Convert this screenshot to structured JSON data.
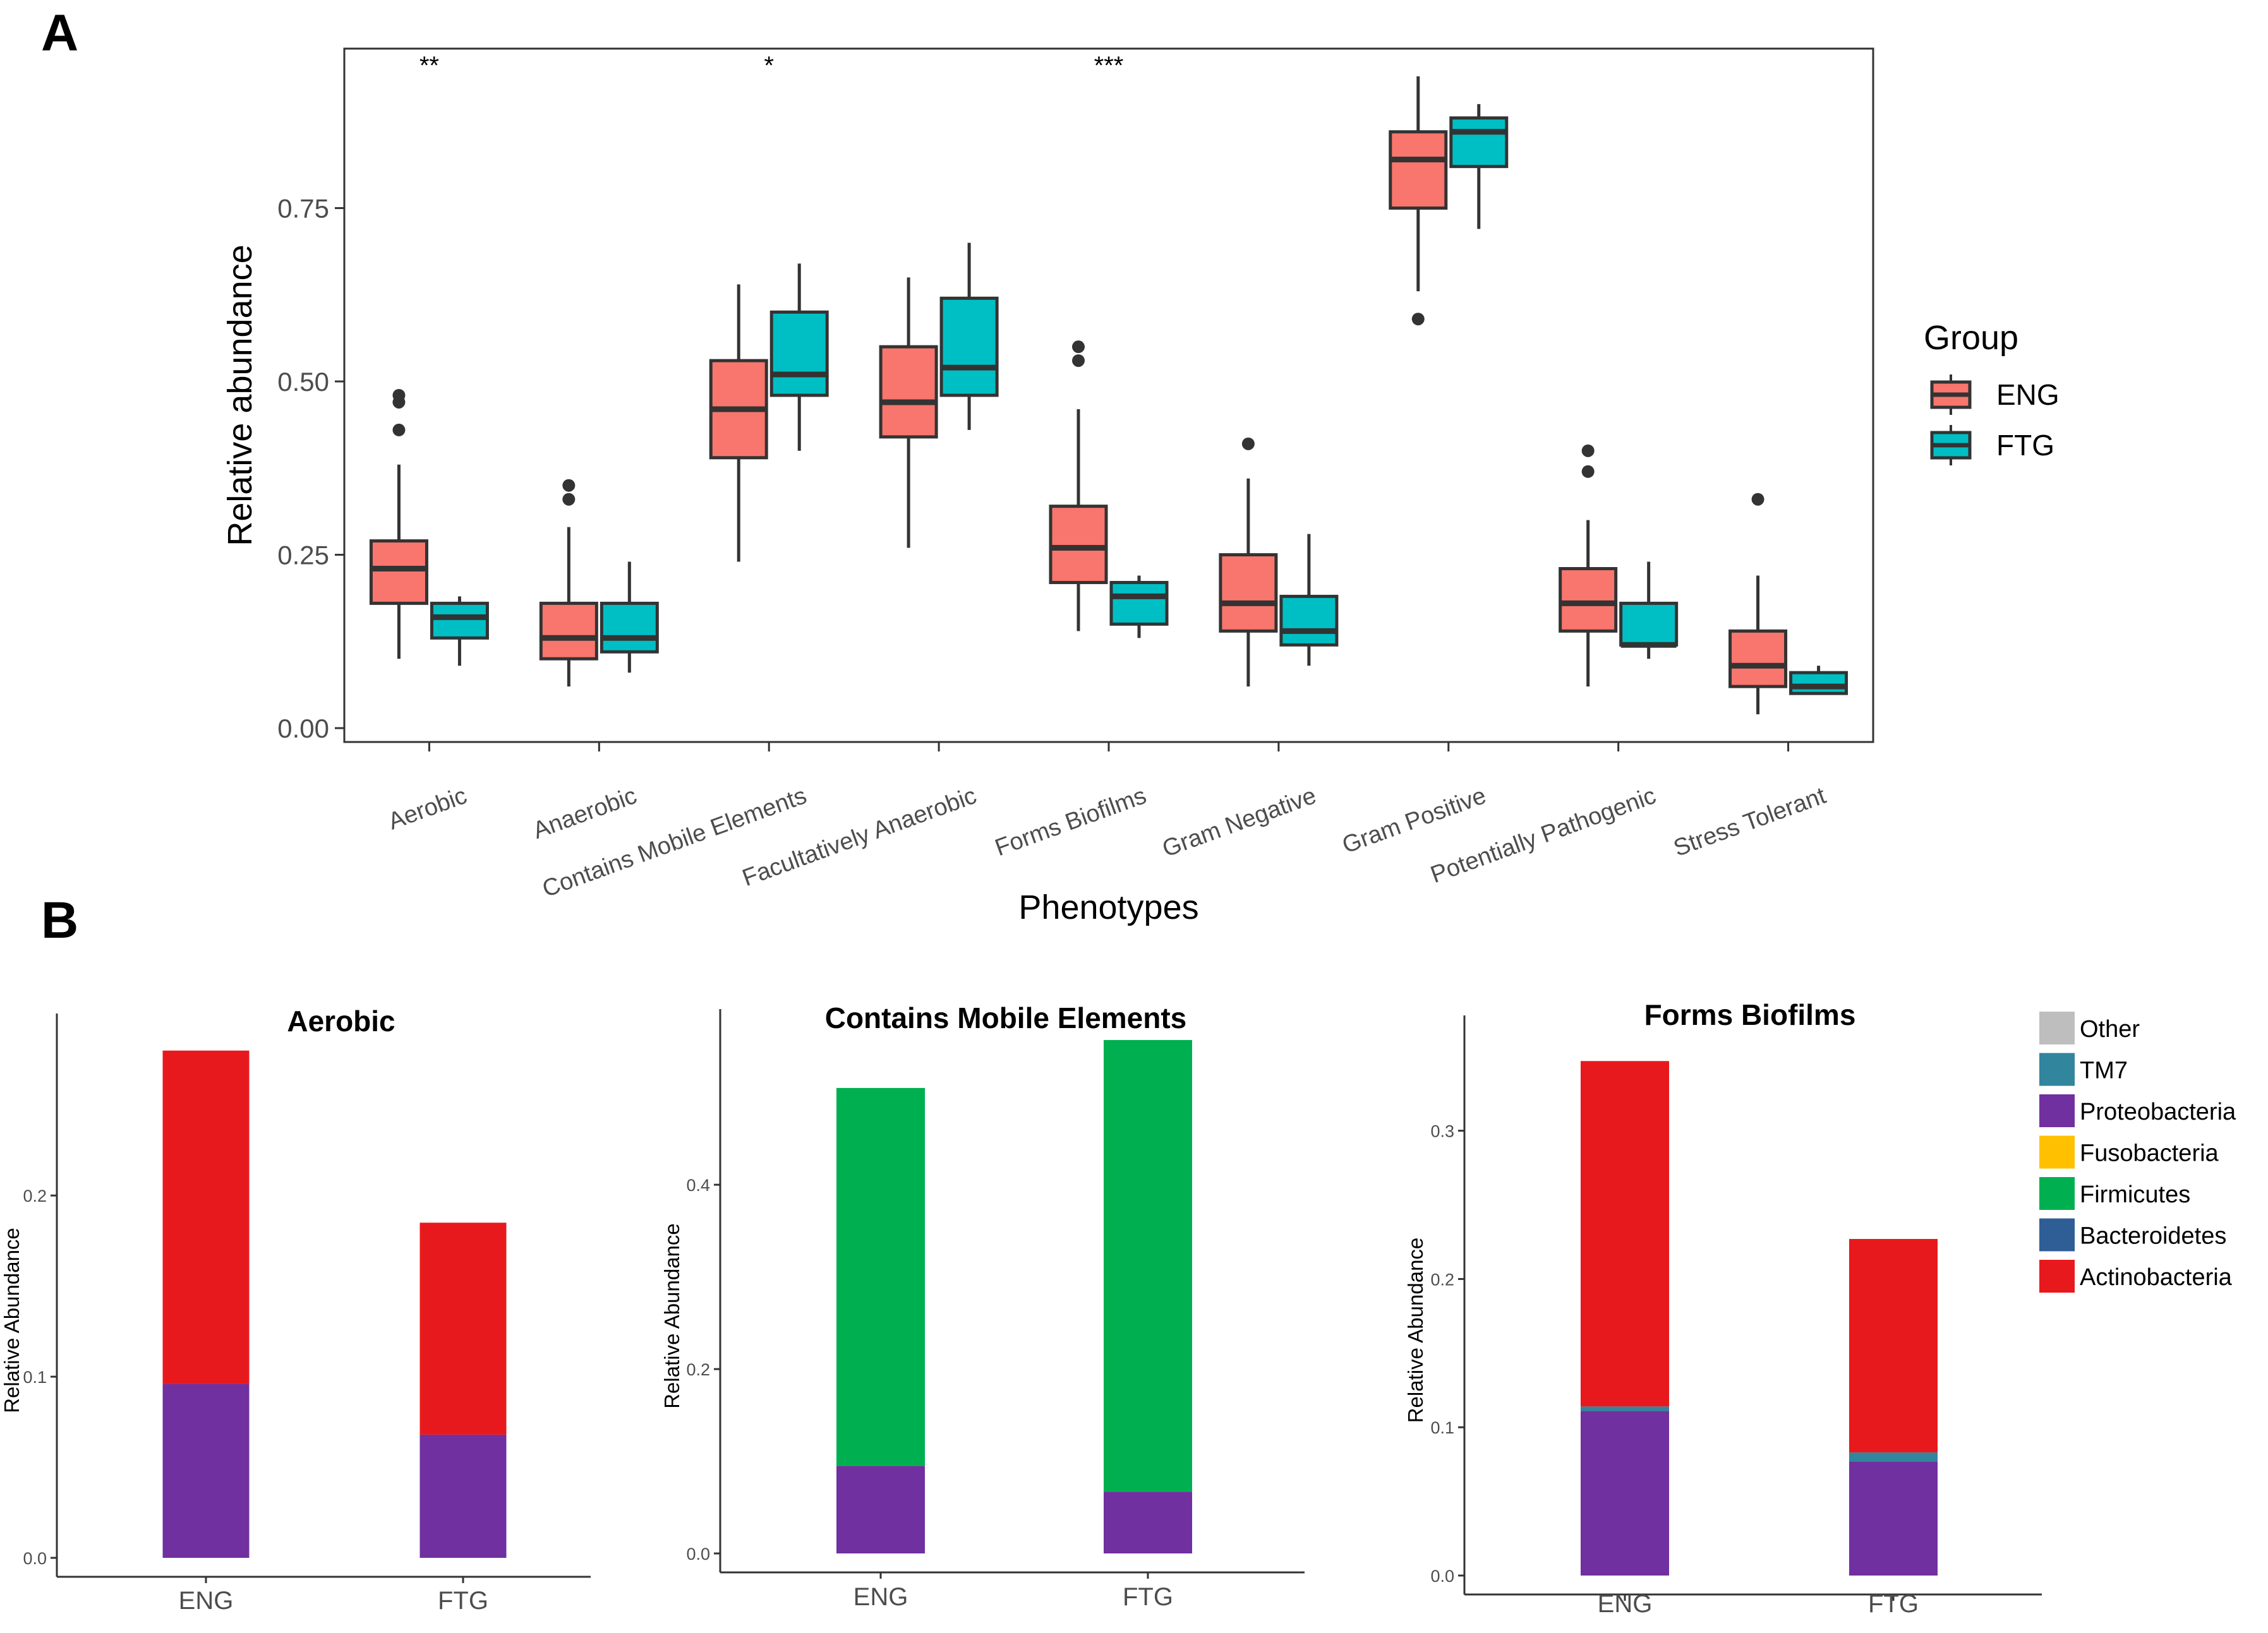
{
  "panel_labels": {
    "a": "A",
    "b": "B"
  },
  "chart_data": [
    {
      "type": "box",
      "panel": "A",
      "title": "",
      "xlabel": "Phenotypes",
      "ylabel": "Relative abundance",
      "ylim": [
        -0.02,
        0.98
      ],
      "yticks": [
        0.0,
        0.25,
        0.5,
        0.75
      ],
      "ytick_labels": [
        "0.00",
        "0.25",
        "0.50",
        "0.75"
      ],
      "grid": false,
      "legend": {
        "title": "Group",
        "position": "right"
      },
      "categories": [
        "Aerobic",
        "Anaerobic",
        "Contains Mobile Elements",
        "Facultatively Anaerobic",
        "Forms Biofilms",
        "Gram Negative",
        "Gram Positive",
        "Potentially Pathogenic",
        "Stress Tolerant"
      ],
      "significance": [
        "**",
        "",
        "*",
        "",
        "***",
        "",
        "",
        "",
        ""
      ],
      "series": [
        {
          "name": "ENG",
          "color": "#F8766D",
          "boxes": [
            {
              "lw": 0.1,
              "q1": 0.18,
              "med": 0.23,
              "q3": 0.27,
              "uw": 0.38,
              "outliers": [
                0.43,
                0.47,
                0.48
              ]
            },
            {
              "lw": 0.06,
              "q1": 0.1,
              "med": 0.13,
              "q3": 0.18,
              "uw": 0.29,
              "outliers": [
                0.33,
                0.35
              ]
            },
            {
              "lw": 0.24,
              "q1": 0.39,
              "med": 0.46,
              "q3": 0.53,
              "uw": 0.64,
              "outliers": []
            },
            {
              "lw": 0.26,
              "q1": 0.42,
              "med": 0.47,
              "q3": 0.55,
              "uw": 0.65,
              "outliers": []
            },
            {
              "lw": 0.14,
              "q1": 0.21,
              "med": 0.26,
              "q3": 0.32,
              "uw": 0.46,
              "outliers": [
                0.53,
                0.55
              ]
            },
            {
              "lw": 0.06,
              "q1": 0.14,
              "med": 0.18,
              "q3": 0.25,
              "uw": 0.36,
              "outliers": [
                0.41
              ]
            },
            {
              "lw": 0.63,
              "q1": 0.75,
              "med": 0.82,
              "q3": 0.86,
              "uw": 0.94,
              "outliers": [
                0.59
              ]
            },
            {
              "lw": 0.06,
              "q1": 0.14,
              "med": 0.18,
              "q3": 0.23,
              "uw": 0.3,
              "outliers": [
                0.37,
                0.4
              ]
            },
            {
              "lw": 0.02,
              "q1": 0.06,
              "med": 0.09,
              "q3": 0.14,
              "uw": 0.22,
              "outliers": [
                0.33
              ]
            }
          ]
        },
        {
          "name": "FTG",
          "color": "#00BFC4",
          "boxes": [
            {
              "lw": 0.09,
              "q1": 0.13,
              "med": 0.16,
              "q3": 0.18,
              "uw": 0.19,
              "outliers": []
            },
            {
              "lw": 0.08,
              "q1": 0.11,
              "med": 0.13,
              "q3": 0.18,
              "uw": 0.24,
              "outliers": []
            },
            {
              "lw": 0.4,
              "q1": 0.48,
              "med": 0.51,
              "q3": 0.6,
              "uw": 0.67,
              "outliers": []
            },
            {
              "lw": 0.43,
              "q1": 0.48,
              "med": 0.52,
              "q3": 0.62,
              "uw": 0.7,
              "outliers": []
            },
            {
              "lw": 0.13,
              "q1": 0.15,
              "med": 0.19,
              "q3": 0.21,
              "uw": 0.22,
              "outliers": []
            },
            {
              "lw": 0.09,
              "q1": 0.12,
              "med": 0.14,
              "q3": 0.19,
              "uw": 0.28,
              "outliers": []
            },
            {
              "lw": 0.72,
              "q1": 0.81,
              "med": 0.86,
              "q3": 0.88,
              "uw": 0.9,
              "outliers": []
            },
            {
              "lw": 0.1,
              "q1": 0.12,
              "med": 0.12,
              "q3": 0.18,
              "uw": 0.24,
              "outliers": []
            },
            {
              "lw": 0.05,
              "q1": 0.05,
              "med": 0.06,
              "q3": 0.08,
              "uw": 0.09,
              "outliers": []
            }
          ]
        }
      ]
    },
    {
      "type": "stacked-bar",
      "panel": "B1",
      "title": "Aerobic",
      "xlabel": "",
      "ylabel": "Relative Abundance",
      "ylim": [
        0,
        0.29
      ],
      "yticks": [
        0.0,
        0.1,
        0.2
      ],
      "ytick_labels": [
        "0.0",
        "0.1",
        "0.2"
      ],
      "categories": [
        "ENG",
        "FTG"
      ],
      "series": [
        {
          "name": "Proteobacteria",
          "values": [
            0.096,
            0.068
          ]
        },
        {
          "name": "Actinobacteria",
          "values": [
            0.184,
            0.117
          ]
        }
      ]
    },
    {
      "type": "stacked-bar",
      "panel": "B2",
      "title": "Contains Mobile Elements",
      "xlabel": "",
      "ylabel": "Relative Abundance",
      "ylim": [
        0,
        0.57
      ],
      "yticks": [
        0.0,
        0.2,
        0.4
      ],
      "ytick_labels": [
        "0.0",
        "0.2",
        "0.4"
      ],
      "categories": [
        "ENG",
        "FTG"
      ],
      "series": [
        {
          "name": "Proteobacteria",
          "values": [
            0.095,
            0.067
          ]
        },
        {
          "name": "Firmicutes",
          "values": [
            0.41,
            0.49
          ]
        }
      ]
    },
    {
      "type": "stacked-bar",
      "panel": "B3",
      "title": "Forms Biofilms",
      "xlabel": "",
      "ylabel": "Relative Abundance",
      "ylim": [
        0,
        0.365
      ],
      "yticks": [
        0.0,
        0.1,
        0.2,
        0.3
      ],
      "ytick_labels": [
        "0.0",
        "0.1",
        "0.2",
        "0.3"
      ],
      "categories": [
        "ENG",
        "FTG"
      ],
      "series": [
        {
          "name": "Proteobacteria",
          "values": [
            0.111,
            0.077
          ]
        },
        {
          "name": "TM7",
          "values": [
            0.003,
            0.006
          ]
        },
        {
          "name": "Actinobacteria",
          "values": [
            0.233,
            0.144
          ]
        }
      ]
    }
  ],
  "legend_b": [
    {
      "name": "Other",
      "color": "#BEBEBE"
    },
    {
      "name": "TM7",
      "color": "#31859C"
    },
    {
      "name": "Proteobacteria",
      "color": "#7030A0"
    },
    {
      "name": "Fusobacteria",
      "color": "#FFC000"
    },
    {
      "name": "Firmicutes",
      "color": "#00B050"
    },
    {
      "name": "Bacteroidetes",
      "color": "#2F5D96"
    },
    {
      "name": "Actinobacteria",
      "color": "#E8191C"
    }
  ]
}
